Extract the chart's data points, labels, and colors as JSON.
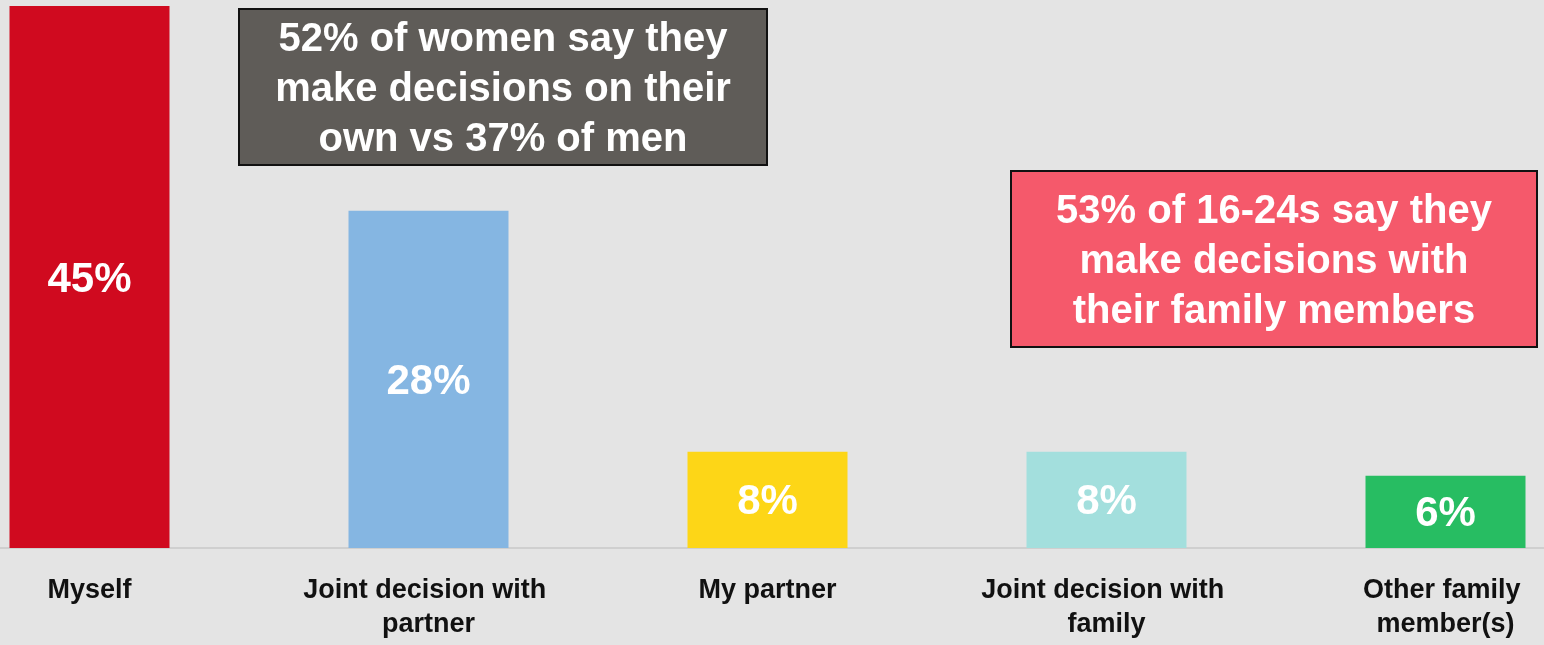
{
  "chart_data": {
    "type": "bar",
    "categories": [
      "Myself",
      "Joint decision with partner",
      "My partner",
      "Joint decision with family",
      "Other family member(s)"
    ],
    "values": [
      45,
      28,
      8,
      8,
      6
    ],
    "colors": [
      "#d00a1f",
      "#85b6e2",
      "#fdd617",
      "#a3dfdd",
      "#27bd62"
    ],
    "value_labels": [
      "45%",
      "28%",
      "8%",
      "8%",
      "6%"
    ],
    "annotations": [
      "52% of women say they make decisions on their own vs 37% of men",
      "53% of 16-24s say they make decisions with their family members"
    ]
  }
}
